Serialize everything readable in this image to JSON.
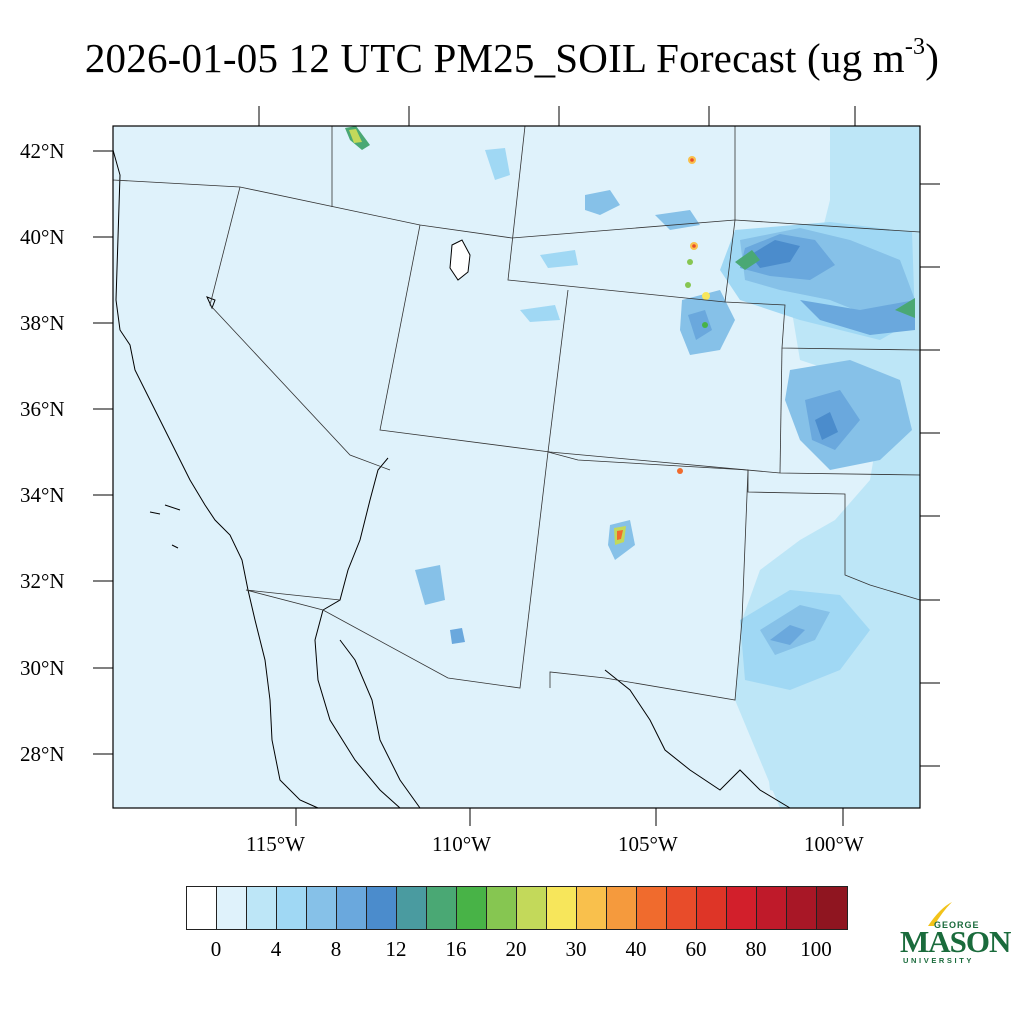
{
  "title": {
    "main": "2026-01-05 12 UTC PM25_SOIL Forecast (ug m",
    "sup": "-3",
    "close": ")"
  },
  "axes": {
    "lat_labels": [
      "42°N",
      "40°N",
      "38°N",
      "36°N",
      "34°N",
      "32°N",
      "30°N",
      "28°N"
    ],
    "lon_labels": [
      "115°W",
      "110°W",
      "105°W",
      "100°W"
    ]
  },
  "colorbar": {
    "labels": [
      "0",
      "4",
      "8",
      "12",
      "16",
      "20",
      "30",
      "40",
      "60",
      "80",
      "100"
    ],
    "colors": [
      "#ffffff",
      "#dff2fb",
      "#bde6f7",
      "#a0d8f4",
      "#86c1e8",
      "#6aa8dd",
      "#4b8ccc",
      "#4a9ba0",
      "#4aa874",
      "#48b347",
      "#86c651",
      "#c3d95a",
      "#f7e65b",
      "#f9c04c",
      "#f59a3d",
      "#f06b2d",
      "#e84c2a",
      "#de3527",
      "#d21f2b",
      "#bf1a2a",
      "#a81726",
      "#8f1520"
    ]
  },
  "logo": {
    "line1": "GEORGE",
    "line2": "MASON",
    "line3": "UNIVERSITY"
  },
  "colors": {
    "background_field": "#dff2fb",
    "light_field": "#bde6f7",
    "mid_field": "#86c1e8",
    "dark_field": "#4b8ccc",
    "green_field": "#4aa874",
    "brand_green": "#1a6b3c"
  }
}
